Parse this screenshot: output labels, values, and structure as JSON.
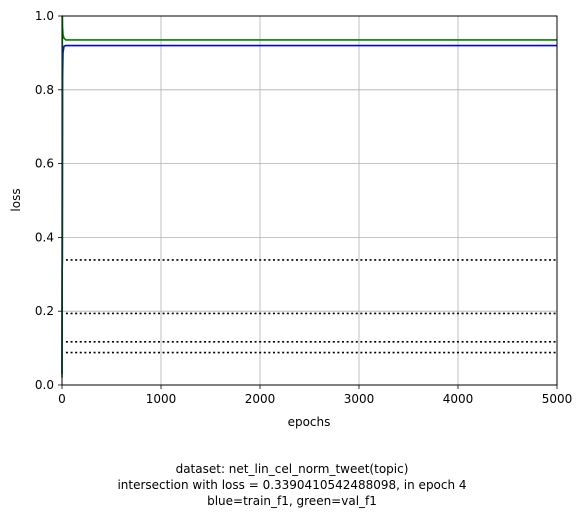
{
  "chart_data": {
    "type": "line",
    "xlabel": "epochs",
    "ylabel": "loss",
    "xlim": [
      0,
      5000
    ],
    "ylim": [
      0,
      1
    ],
    "xticks": [
      0,
      1000,
      2000,
      3000,
      4000,
      5000
    ],
    "yticks": [
      0.0,
      0.2,
      0.4,
      0.6,
      0.8,
      1.0
    ],
    "xtick_labels": [
      "0",
      "1000",
      "2000",
      "3000",
      "4000",
      "5000"
    ],
    "ytick_labels": [
      "0.0",
      "0.2",
      "0.4",
      "0.6",
      "0.8",
      "1.0"
    ],
    "grid": true,
    "series": [
      {
        "color": "#0000ff",
        "x": [
          0,
          2,
          4,
          6,
          10,
          20,
          40,
          100,
          1000,
          2000,
          3000,
          4000,
          5000
        ],
        "values": [
          0.03,
          0.31,
          0.34,
          0.83,
          0.9,
          0.918,
          0.92,
          0.92,
          0.92,
          0.92,
          0.92,
          0.92,
          0.92
        ]
      },
      {
        "color": "#008000",
        "x": [
          0,
          2,
          4,
          6,
          10,
          20,
          40,
          100,
          1000,
          2000,
          3000,
          4000,
          5000
        ],
        "values": [
          0.02,
          0.45,
          1.0,
          0.97,
          0.95,
          0.94,
          0.935,
          0.935,
          0.935,
          0.935,
          0.935,
          0.935,
          0.935
        ]
      }
    ],
    "hlines": [
      {
        "y": 0.339,
        "x_start": 40,
        "x_end": 5000,
        "style": "dotted",
        "color": "#000000"
      },
      {
        "y": 0.194,
        "x_start": 40,
        "x_end": 5000,
        "style": "dotted",
        "color": "#000000"
      },
      {
        "y": 0.117,
        "x_start": 40,
        "x_end": 5000,
        "style": "dotted",
        "color": "#000000"
      },
      {
        "y": 0.088,
        "x_start": 40,
        "x_end": 5000,
        "style": "dotted",
        "color": "#000000"
      }
    ]
  },
  "caption": {
    "line1": "dataset: net_lin_cel_norm_tweet(topic)",
    "line2": "intersection with loss = 0.3390410542488098, in epoch 4",
    "line3": "blue=train_f1, green=val_f1"
  }
}
